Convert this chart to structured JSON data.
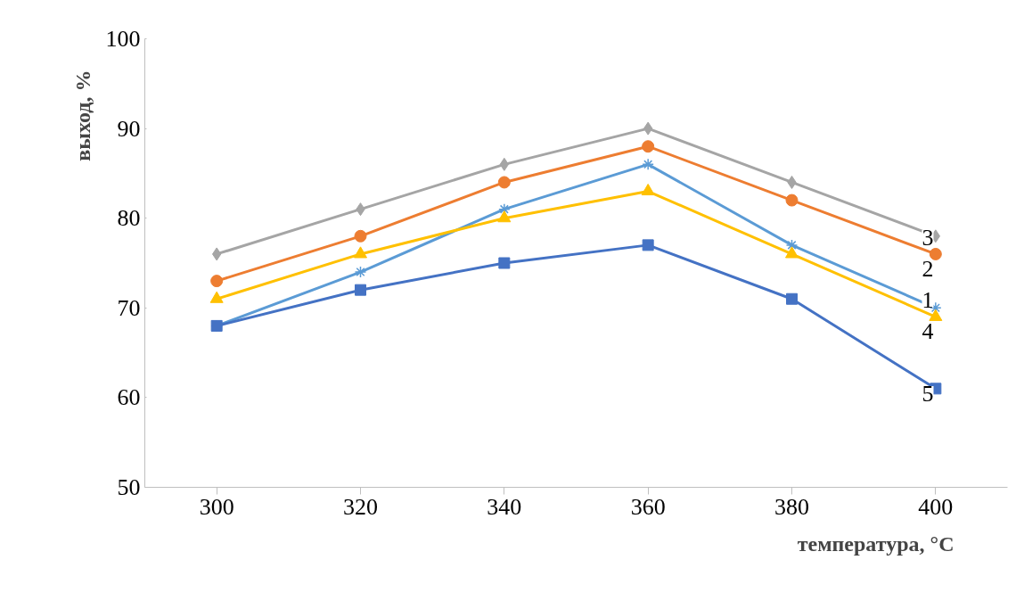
{
  "chart_data": {
    "type": "line",
    "xlabel": "температура, °C",
    "ylabel": "выход, %",
    "x": [
      300,
      320,
      340,
      360,
      380,
      400
    ],
    "xlim": [
      290,
      410
    ],
    "xticks": [
      300,
      320,
      340,
      360,
      380,
      400
    ],
    "ylim": [
      50,
      100
    ],
    "yticks": [
      50,
      60,
      70,
      80,
      90,
      100
    ],
    "grid": false,
    "series": [
      {
        "color": "#a5a5a5",
        "marker": "diamond",
        "values": [
          76,
          81,
          86,
          90,
          84,
          78
        ]
      },
      {
        "color": "#ed7d31",
        "marker": "circle",
        "values": [
          73,
          78,
          84,
          88,
          82,
          76
        ]
      },
      {
        "color": "#5b9bd5",
        "marker": "cross",
        "values": [
          68,
          74,
          81,
          86,
          77,
          70
        ]
      },
      {
        "color": "#ffc000",
        "marker": "triangle",
        "values": [
          71,
          76,
          80,
          83,
          76,
          69
        ]
      },
      {
        "color": "#4472c4",
        "marker": "square",
        "values": [
          68,
          72,
          75,
          77,
          71,
          61
        ]
      }
    ],
    "annotations": [
      "3",
      "2",
      "1",
      "4",
      "5"
    ]
  }
}
